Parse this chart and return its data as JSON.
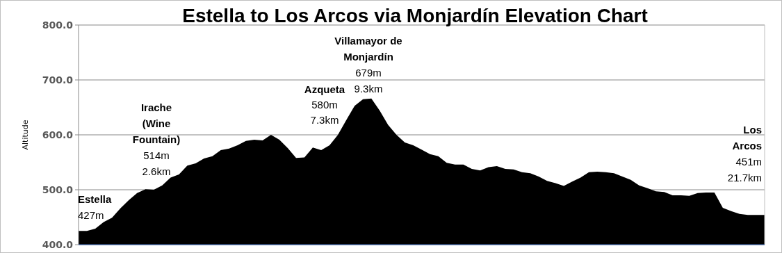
{
  "chart_data": {
    "type": "area",
    "title": "Estella to Los Arcos via Monjardín Elevation Chart",
    "ylabel": "Altitude",
    "categories": [
      null,
      null,
      null,
      null,
      null,
      null,
      null,
      null,
      null,
      null,
      null,
      null,
      null,
      null,
      null,
      null,
      null,
      null,
      null,
      null,
      null,
      null,
      null,
      null,
      null,
      null,
      null,
      null,
      null,
      null,
      null,
      null,
      null,
      null,
      null,
      null,
      null,
      null,
      null,
      null,
      null,
      null,
      null,
      null,
      null,
      null,
      null,
      null,
      null,
      null,
      null,
      null,
      null,
      null,
      null,
      null,
      null,
      null,
      null,
      null,
      null,
      null,
      null,
      null,
      null,
      null,
      null,
      null,
      null,
      null,
      null,
      null,
      null,
      null,
      null,
      null,
      null,
      null,
      null,
      null,
      null,
      null,
      null
    ],
    "series": [
      {
        "color": "#000000",
        "values": [
          425,
          425,
          429,
          441,
          449,
          466,
          481,
          494,
          501,
          500,
          508,
          522,
          528,
          544,
          548,
          557,
          561,
          572,
          575,
          581,
          589,
          591,
          590,
          600,
          591,
          576,
          558,
          559,
          577,
          572,
          581,
          600,
          627,
          653,
          665,
          666,
          644,
          618,
          600,
          586,
          581,
          573,
          565,
          561,
          549,
          546,
          546,
          538,
          535,
          541,
          543,
          538,
          537,
          532,
          530,
          524,
          516,
          512,
          507,
          515,
          522,
          532,
          533,
          532,
          530,
          524,
          518,
          508,
          503,
          497,
          496,
          490,
          490,
          489,
          494,
          495,
          495,
          467,
          461,
          456,
          454,
          454,
          454
        ]
      }
    ],
    "ylim": [
      400,
      800
    ],
    "yticks": [
      {
        "value": 400,
        "label": "400.0"
      },
      {
        "value": 500,
        "label": "500.0"
      },
      {
        "value": 600,
        "label": "600.0"
      },
      {
        "value": 700,
        "label": "700.0"
      },
      {
        "value": 800,
        "label": "800.0"
      }
    ],
    "grid": "y",
    "annotations": [
      "Estella\n427m",
      "Irache\n(Wine\nFountain)\n514m\n2.6km",
      "Azqueta\n580m\n7.3km",
      "Villamayor de\nMonjardín\n679m\n9.3km",
      "Los\nArcos\n451m\n21.7km"
    ]
  }
}
